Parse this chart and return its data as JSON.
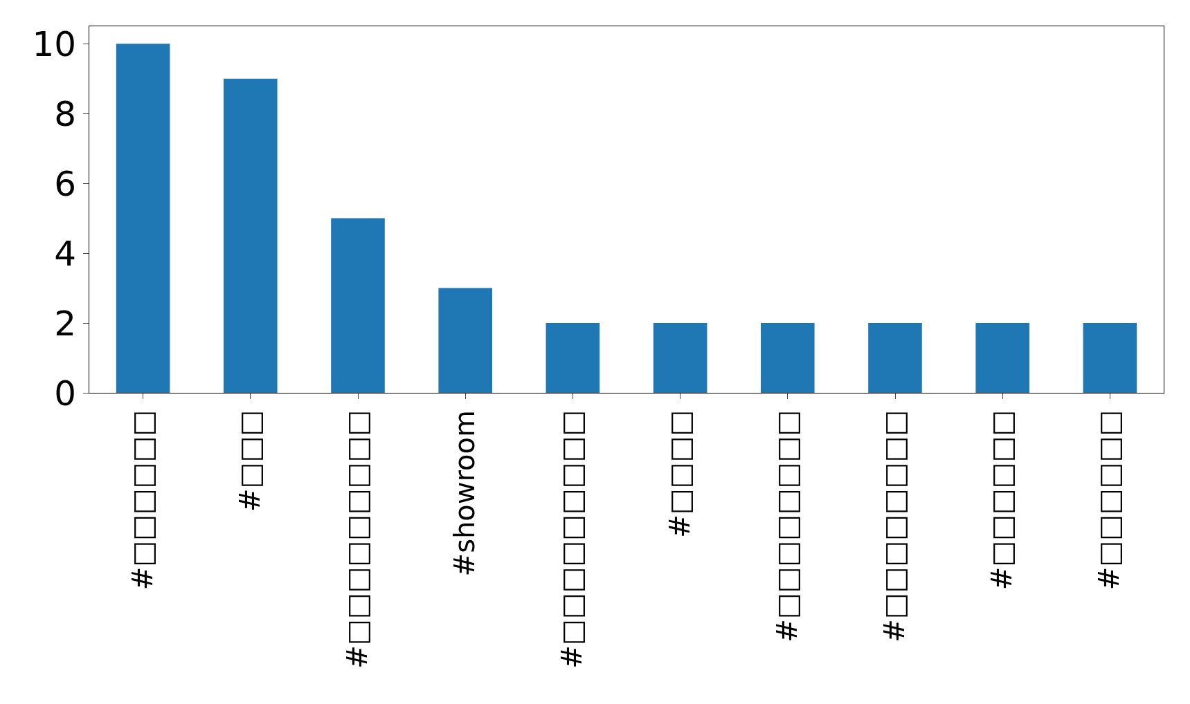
{
  "chart_data": {
    "type": "bar",
    "categories": [
      "#□□□□□□",
      "#□□□",
      "#□□□□□□□□□",
      "#showroom",
      "#□□□□□□□□□",
      "#□□□□",
      "#□□□□□□□□",
      "#□□□□□□□□",
      "#□□□□□□",
      "#□□□□□□"
    ],
    "values": [
      10,
      9,
      5,
      3,
      2,
      2,
      2,
      2,
      2,
      2
    ],
    "color": "#1f77b4",
    "ylim": [
      0,
      10.5
    ],
    "yticks": [
      0,
      2,
      4,
      6,
      8,
      10
    ],
    "legend": false
  }
}
